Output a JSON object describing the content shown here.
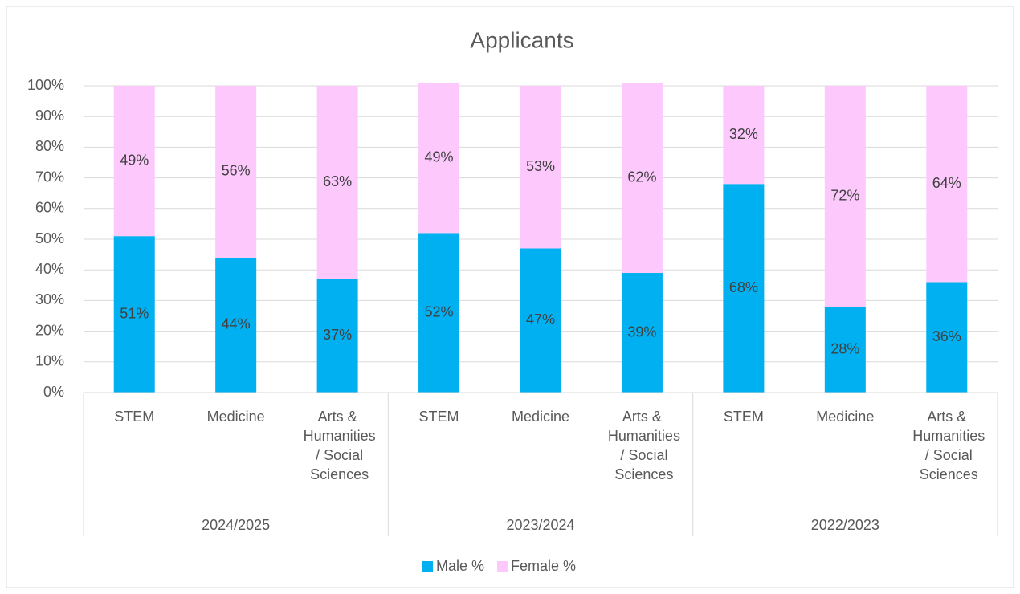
{
  "chart_data": {
    "type": "stacked_bar",
    "title": "Applicants",
    "categories": [
      "STEM",
      "Medicine",
      "Arts & Humanities / Social Sciences",
      "STEM",
      "Medicine",
      "Arts & Humanities / Social Sciences",
      "STEM",
      "Medicine",
      "Arts & Humanities / Social Sciences"
    ],
    "groups": [
      "2024/2025",
      "2023/2024",
      "2022/2023"
    ],
    "series": [
      {
        "name": "Male %",
        "color": "#00b0f0",
        "values": [
          51,
          44,
          37,
          52,
          47,
          39,
          68,
          28,
          36
        ],
        "value_labels": [
          "51%",
          "44%",
          "37%",
          "52%",
          "47%",
          "39%",
          "68%",
          "28%",
          "36%"
        ]
      },
      {
        "name": "Female %",
        "color": "#fdc9fd",
        "values": [
          49,
          56,
          63,
          49,
          53,
          62,
          32,
          72,
          64
        ],
        "value_labels": [
          "49%",
          "56%",
          "63%",
          "49%",
          "53%",
          "62%",
          "32%",
          "72%",
          "64%"
        ]
      }
    ],
    "ylim": [
      0,
      100
    ],
    "yticks": [
      {
        "value": 0,
        "label": "0%"
      },
      {
        "value": 10,
        "label": "10%"
      },
      {
        "value": 20,
        "label": "20%"
      },
      {
        "value": 30,
        "label": "30%"
      },
      {
        "value": 40,
        "label": "40%"
      },
      {
        "value": 50,
        "label": "50%"
      },
      {
        "value": 60,
        "label": "60%"
      },
      {
        "value": 70,
        "label": "70%"
      },
      {
        "value": 80,
        "label": "80%"
      },
      {
        "value": 90,
        "label": "90%"
      },
      {
        "value": 100,
        "label": "100%"
      }
    ],
    "grid": true,
    "legend": "bottom"
  }
}
